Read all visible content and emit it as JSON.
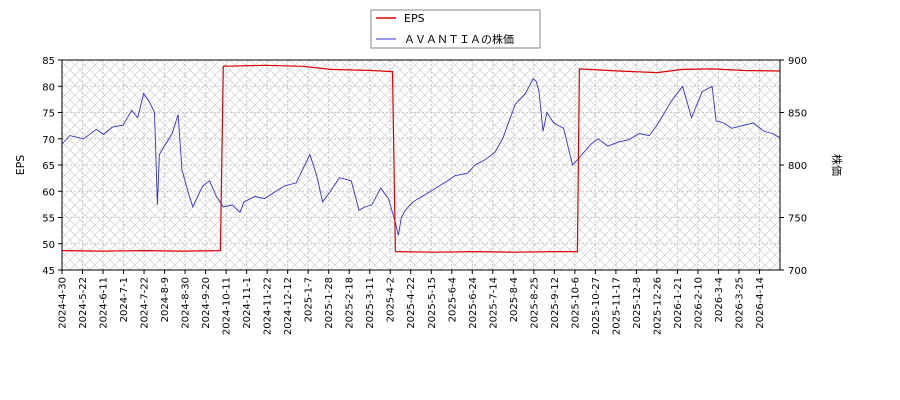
{
  "chart_data": {
    "type": "line",
    "title": "",
    "xlabel": "",
    "ylabel_left": "EPS",
    "ylabel_right": "株価",
    "ylim_left": [
      45,
      85
    ],
    "yticks_left": [
      45,
      50,
      55,
      60,
      65,
      70,
      75,
      80,
      85
    ],
    "ylim_right": [
      700,
      900
    ],
    "yticks_right": [
      700,
      750,
      800,
      850,
      900
    ],
    "xlim": [
      "2024-04-30",
      "2026-04-30"
    ],
    "x_tick_labels": [
      "2024-4-30",
      "2024-5-22",
      "2024-6-11",
      "2024-7-1",
      "2024-7-22",
      "2024-8-9",
      "2024-8-30",
      "2024-9-20",
      "2024-10-11",
      "2024-11-1",
      "2024-11-22",
      "2024-12-12",
      "2025-1-7",
      "2025-1-28",
      "2025-2-18",
      "2025-3-11",
      "2025-4-2",
      "2025-4-22",
      "2025-5-15",
      "2025-6-4",
      "2025-6-24",
      "2025-7-14",
      "2025-8-4",
      "2025-8-25",
      "2025-9-12",
      "2025-10-6",
      "2025-10-27",
      "2025-11-17",
      "2025-12-8",
      "2025-12-26",
      "2026-1-21",
      "2026-2-10",
      "2026-3-4",
      "2026-3-25",
      "2026-4-14"
    ],
    "grid": true,
    "legend": "top-center",
    "series": [
      {
        "name": "EPS",
        "axis": "left",
        "color": "#dd0000",
        "points": [
          [
            "2024-04-30",
            48.7
          ],
          [
            "2024-06-11",
            48.6
          ],
          [
            "2024-07-22",
            48.7
          ],
          [
            "2024-08-30",
            48.6
          ],
          [
            "2024-10-08",
            48.7
          ],
          [
            "2024-10-11",
            83.8
          ],
          [
            "2024-11-22",
            84.0
          ],
          [
            "2024-12-31",
            83.8
          ],
          [
            "2025-01-28",
            83.2
          ],
          [
            "2025-03-11",
            83.0
          ],
          [
            "2025-04-01",
            82.8
          ],
          [
            "2025-04-04",
            48.5
          ],
          [
            "2025-05-15",
            48.4
          ],
          [
            "2025-06-24",
            48.5
          ],
          [
            "2025-08-04",
            48.4
          ],
          [
            "2025-09-12",
            48.5
          ],
          [
            "2025-10-06",
            48.5
          ],
          [
            "2025-10-08",
            83.3
          ],
          [
            "2025-11-17",
            82.9
          ],
          [
            "2025-12-26",
            82.6
          ],
          [
            "2026-01-21",
            83.2
          ],
          [
            "2026-02-20",
            83.3
          ],
          [
            "2026-03-25",
            83.0
          ],
          [
            "2026-04-30",
            82.9
          ]
        ]
      },
      {
        "name": "ＡＶＡＮＴＩＡの株価",
        "axis": "right",
        "color": "#3333cc",
        "points": [
          [
            "2024-04-30",
            820
          ],
          [
            "2024-05-08",
            828
          ],
          [
            "2024-05-22",
            825
          ],
          [
            "2024-06-04",
            834
          ],
          [
            "2024-06-11",
            829
          ],
          [
            "2024-06-20",
            836
          ],
          [
            "2024-07-01",
            838
          ],
          [
            "2024-07-10",
            852
          ],
          [
            "2024-07-16",
            845
          ],
          [
            "2024-07-22",
            868
          ],
          [
            "2024-07-28",
            860
          ],
          [
            "2024-08-02",
            850
          ],
          [
            "2024-08-05",
            762
          ],
          [
            "2024-08-07",
            810
          ],
          [
            "2024-08-12",
            818
          ],
          [
            "2024-08-20",
            830
          ],
          [
            "2024-08-26",
            848
          ],
          [
            "2024-08-30",
            795
          ],
          [
            "2024-09-05",
            775
          ],
          [
            "2024-09-10",
            760
          ],
          [
            "2024-09-20",
            780
          ],
          [
            "2024-09-27",
            785
          ],
          [
            "2024-10-04",
            770
          ],
          [
            "2024-10-11",
            760
          ],
          [
            "2024-10-20",
            762
          ],
          [
            "2024-10-28",
            755
          ],
          [
            "2024-11-01",
            765
          ],
          [
            "2024-11-12",
            770
          ],
          [
            "2024-11-22",
            768
          ],
          [
            "2024-12-02",
            774
          ],
          [
            "2024-12-12",
            780
          ],
          [
            "2024-12-24",
            783
          ],
          [
            "2025-01-07",
            810
          ],
          [
            "2025-01-14",
            790
          ],
          [
            "2025-01-20",
            765
          ],
          [
            "2025-01-28",
            775
          ],
          [
            "2025-02-06",
            788
          ],
          [
            "2025-02-18",
            785
          ],
          [
            "2025-02-26",
            757
          ],
          [
            "2025-03-04",
            760
          ],
          [
            "2025-03-11",
            762
          ],
          [
            "2025-03-20",
            778
          ],
          [
            "2025-03-28",
            768
          ],
          [
            "2025-04-04",
            745
          ],
          [
            "2025-04-07",
            733
          ],
          [
            "2025-04-10",
            750
          ],
          [
            "2025-04-14",
            757
          ],
          [
            "2025-04-22",
            765
          ],
          [
            "2025-05-01",
            770
          ],
          [
            "2025-05-15",
            778
          ],
          [
            "2025-05-27",
            785
          ],
          [
            "2025-06-04",
            790
          ],
          [
            "2025-06-16",
            792
          ],
          [
            "2025-06-24",
            800
          ],
          [
            "2025-07-04",
            805
          ],
          [
            "2025-07-14",
            812
          ],
          [
            "2025-07-22",
            825
          ],
          [
            "2025-08-04",
            858
          ],
          [
            "2025-08-14",
            868
          ],
          [
            "2025-08-22",
            882
          ],
          [
            "2025-08-25",
            880
          ],
          [
            "2025-08-28",
            870
          ],
          [
            "2025-09-01",
            832
          ],
          [
            "2025-09-05",
            850
          ],
          [
            "2025-09-12",
            840
          ],
          [
            "2025-09-22",
            835
          ],
          [
            "2025-10-01",
            800
          ],
          [
            "2025-10-06",
            805
          ],
          [
            "2025-10-20",
            820
          ],
          [
            "2025-10-27",
            825
          ],
          [
            "2025-11-06",
            818
          ],
          [
            "2025-11-17",
            822
          ],
          [
            "2025-11-27",
            824
          ],
          [
            "2025-12-08",
            830
          ],
          [
            "2025-12-18",
            828
          ],
          [
            "2025-12-26",
            838
          ],
          [
            "2026-01-09",
            860
          ],
          [
            "2026-01-21",
            875
          ],
          [
            "2026-01-30",
            845
          ],
          [
            "2026-02-10",
            870
          ],
          [
            "2026-02-20",
            875
          ],
          [
            "2026-02-24",
            842
          ],
          [
            "2026-03-04",
            840
          ],
          [
            "2026-03-12",
            835
          ],
          [
            "2026-03-25",
            838
          ],
          [
            "2026-04-03",
            840
          ],
          [
            "2026-04-14",
            832
          ],
          [
            "2026-04-22",
            830
          ],
          [
            "2026-04-30",
            826
          ]
        ]
      }
    ]
  }
}
